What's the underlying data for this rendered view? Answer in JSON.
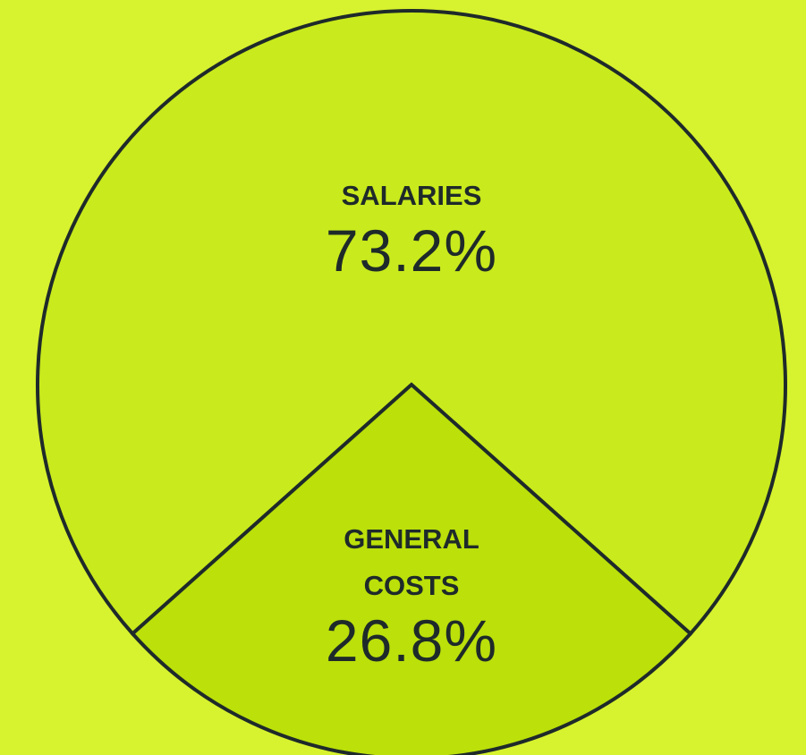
{
  "chart_data": {
    "type": "pie",
    "categories": [
      "SALARIES",
      "GENERAL COSTS"
    ],
    "values": [
      73.2,
      26.8
    ],
    "value_labels": [
      "73.2%",
      "26.8%"
    ],
    "colors": [
      "#c9ea1c",
      "#bbe00a"
    ]
  }
}
